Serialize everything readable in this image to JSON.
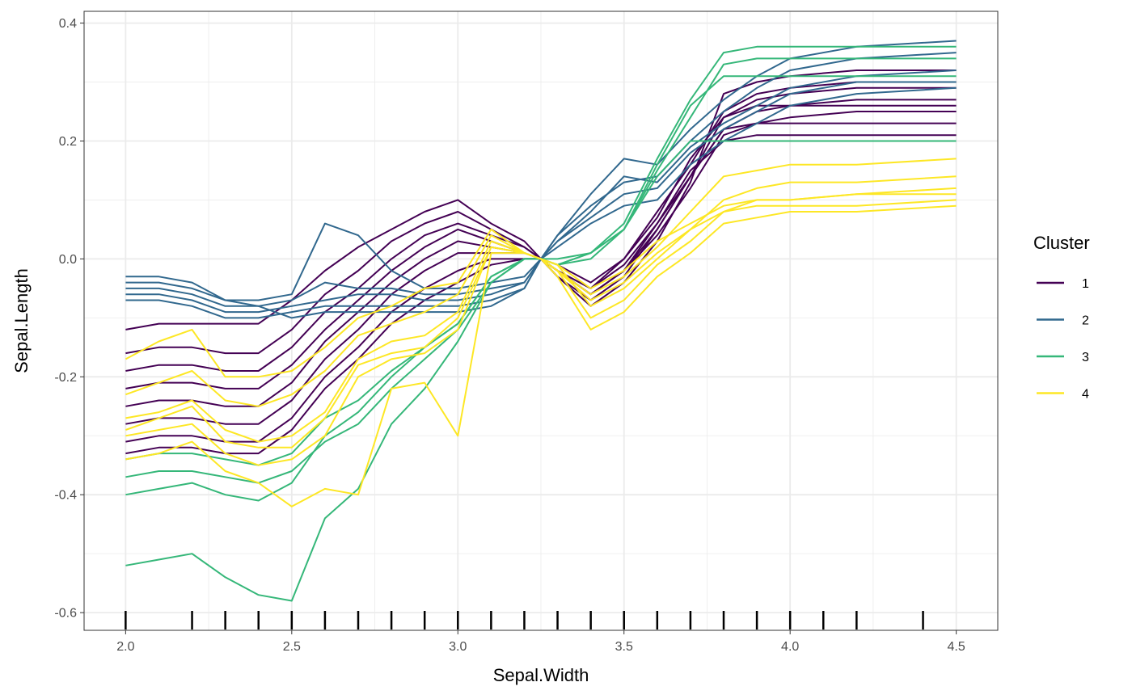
{
  "chart_data": {
    "type": "line",
    "title": "",
    "xlabel": "Sepal.Width",
    "ylabel": "Sepal.Length",
    "xlim": [
      1.875,
      4.625
    ],
    "ylim": [
      -0.63,
      0.42
    ],
    "x_ticks": [
      2.0,
      2.5,
      3.0,
      3.5,
      4.0,
      4.5
    ],
    "x_tick_labels": [
      "2.0",
      "2.5",
      "3.0",
      "3.5",
      "4.0",
      "4.5"
    ],
    "y_ticks": [
      0.4,
      0.2,
      0.0,
      -0.2,
      -0.4,
      -0.6
    ],
    "y_tick_labels": [
      "0.4",
      "0.2",
      "0.0",
      "-0.2",
      "-0.4",
      "-0.6"
    ],
    "grid": true,
    "rug_x": [
      2.0,
      2.2,
      2.3,
      2.4,
      2.5,
      2.6,
      2.7,
      2.8,
      2.9,
      3.0,
      3.1,
      3.2,
      3.3,
      3.4,
      3.5,
      3.6,
      3.7,
      3.8,
      3.9,
      4.0,
      4.1,
      4.2,
      4.4
    ],
    "legend": {
      "title": "Cluster",
      "position": "right",
      "items": [
        {
          "label": "1",
          "color": "#440154"
        },
        {
          "label": "2",
          "color": "#31688E"
        },
        {
          "label": "3",
          "color": "#35B779"
        },
        {
          "label": "4",
          "color": "#FDE725"
        }
      ]
    },
    "x": [
      2.0,
      2.1,
      2.2,
      2.3,
      2.4,
      2.5,
      2.6,
      2.7,
      2.8,
      2.9,
      3.0,
      3.1,
      3.2,
      3.25,
      3.3,
      3.4,
      3.5,
      3.6,
      3.7,
      3.8,
      3.9,
      4.0,
      4.2,
      4.5
    ],
    "series": [
      {
        "cluster": "1",
        "values": [
          -0.12,
          -0.11,
          -0.11,
          -0.11,
          -0.11,
          -0.07,
          -0.02,
          0.02,
          0.05,
          0.08,
          0.1,
          0.06,
          0.03,
          0.0,
          -0.02,
          -0.06,
          -0.02,
          0.06,
          0.14,
          0.22,
          0.25,
          0.26,
          0.27,
          0.27
        ]
      },
      {
        "cluster": "1",
        "values": [
          -0.16,
          -0.15,
          -0.15,
          -0.16,
          -0.16,
          -0.12,
          -0.06,
          -0.02,
          0.03,
          0.06,
          0.08,
          0.05,
          0.02,
          0.0,
          -0.02,
          -0.05,
          0.0,
          0.08,
          0.16,
          0.25,
          0.28,
          0.29,
          0.3,
          0.3
        ]
      },
      {
        "cluster": "1",
        "values": [
          -0.19,
          -0.18,
          -0.18,
          -0.19,
          -0.19,
          -0.15,
          -0.09,
          -0.05,
          0.0,
          0.04,
          0.06,
          0.04,
          0.02,
          0.0,
          -0.03,
          -0.07,
          -0.03,
          0.05,
          0.14,
          0.24,
          0.27,
          0.28,
          0.29,
          0.29
        ]
      },
      {
        "cluster": "1",
        "values": [
          -0.22,
          -0.21,
          -0.21,
          -0.22,
          -0.22,
          -0.18,
          -0.12,
          -0.07,
          -0.02,
          0.02,
          0.05,
          0.03,
          0.01,
          0.0,
          -0.02,
          -0.06,
          -0.02,
          0.04,
          0.12,
          0.21,
          0.23,
          0.24,
          0.25,
          0.25
        ]
      },
      {
        "cluster": "1",
        "values": [
          -0.25,
          -0.24,
          -0.24,
          -0.25,
          -0.25,
          -0.21,
          -0.14,
          -0.09,
          -0.04,
          0.0,
          0.03,
          0.02,
          0.01,
          0.0,
          -0.03,
          -0.08,
          -0.04,
          0.03,
          0.13,
          0.28,
          0.3,
          0.31,
          0.32,
          0.32
        ]
      },
      {
        "cluster": "1",
        "values": [
          -0.28,
          -0.27,
          -0.27,
          -0.28,
          -0.28,
          -0.24,
          -0.17,
          -0.12,
          -0.06,
          -0.02,
          0.01,
          0.01,
          0.01,
          0.0,
          -0.02,
          -0.05,
          -0.01,
          0.06,
          0.15,
          0.2,
          0.21,
          0.21,
          0.21,
          0.21
        ]
      },
      {
        "cluster": "1",
        "values": [
          -0.31,
          -0.3,
          -0.3,
          -0.31,
          -0.31,
          -0.27,
          -0.2,
          -0.15,
          -0.09,
          -0.05,
          -0.02,
          0.0,
          0.0,
          0.0,
          -0.01,
          -0.04,
          0.0,
          0.07,
          0.17,
          0.24,
          0.26,
          0.26,
          0.26,
          0.26
        ]
      },
      {
        "cluster": "1",
        "values": [
          -0.33,
          -0.32,
          -0.32,
          -0.33,
          -0.33,
          -0.29,
          -0.22,
          -0.17,
          -0.11,
          -0.07,
          -0.04,
          -0.01,
          0.0,
          0.0,
          -0.02,
          -0.06,
          -0.02,
          0.05,
          0.14,
          0.22,
          0.23,
          0.23,
          0.23,
          0.23
        ]
      },
      {
        "cluster": "2",
        "values": [
          -0.03,
          -0.03,
          -0.04,
          -0.07,
          -0.07,
          -0.06,
          0.06,
          0.04,
          -0.02,
          -0.05,
          -0.05,
          -0.04,
          -0.03,
          0.0,
          0.04,
          0.11,
          0.17,
          0.16,
          0.22,
          0.27,
          0.31,
          0.34,
          0.36,
          0.37
        ]
      },
      {
        "cluster": "2",
        "values": [
          -0.05,
          -0.05,
          -0.06,
          -0.08,
          -0.08,
          -0.07,
          -0.04,
          -0.05,
          -0.05,
          -0.06,
          -0.06,
          -0.05,
          -0.04,
          0.0,
          0.03,
          0.08,
          0.14,
          0.13,
          0.19,
          0.23,
          0.26,
          0.29,
          0.31,
          0.32
        ]
      },
      {
        "cluster": "2",
        "values": [
          -0.06,
          -0.06,
          -0.07,
          -0.09,
          -0.09,
          -0.08,
          -0.07,
          -0.06,
          -0.06,
          -0.07,
          -0.07,
          -0.06,
          -0.04,
          0.0,
          0.03,
          0.07,
          0.11,
          0.12,
          0.18,
          0.22,
          0.25,
          0.28,
          0.3,
          0.3
        ]
      },
      {
        "cluster": "2",
        "values": [
          -0.07,
          -0.07,
          -0.08,
          -0.1,
          -0.1,
          -0.09,
          -0.08,
          -0.08,
          -0.08,
          -0.08,
          -0.08,
          -0.07,
          -0.05,
          0.0,
          0.02,
          0.06,
          0.09,
          0.1,
          0.16,
          0.2,
          0.23,
          0.26,
          0.28,
          0.29
        ]
      },
      {
        "cluster": "2",
        "values": [
          -0.04,
          -0.04,
          -0.05,
          -0.07,
          -0.08,
          -0.1,
          -0.09,
          -0.09,
          -0.09,
          -0.09,
          -0.09,
          -0.08,
          -0.05,
          0.0,
          0.04,
          0.09,
          0.13,
          0.14,
          0.2,
          0.25,
          0.29,
          0.32,
          0.34,
          0.35
        ]
      },
      {
        "cluster": "3",
        "values": [
          -0.37,
          -0.36,
          -0.36,
          -0.37,
          -0.38,
          -0.36,
          -0.31,
          -0.28,
          -0.22,
          -0.17,
          -0.12,
          -0.04,
          0.0,
          0.0,
          -0.01,
          0.01,
          0.06,
          0.17,
          0.27,
          0.35,
          0.36,
          0.36,
          0.36,
          0.36
        ]
      },
      {
        "cluster": "3",
        "values": [
          -0.4,
          -0.39,
          -0.38,
          -0.4,
          -0.41,
          -0.38,
          -0.3,
          -0.26,
          -0.2,
          -0.15,
          -0.11,
          -0.03,
          0.0,
          0.0,
          -0.01,
          0.0,
          0.05,
          0.15,
          0.24,
          0.33,
          0.34,
          0.34,
          0.34,
          0.34
        ]
      },
      {
        "cluster": "3",
        "values": [
          -0.52,
          -0.51,
          -0.5,
          -0.54,
          -0.57,
          -0.58,
          -0.44,
          -0.39,
          -0.28,
          -0.22,
          -0.14,
          -0.04,
          0.0,
          0.0,
          0.0,
          0.01,
          0.05,
          0.14,
          0.2,
          0.2,
          0.2,
          0.2,
          0.2,
          0.2
        ]
      },
      {
        "cluster": "3",
        "values": [
          -0.34,
          -0.33,
          -0.33,
          -0.34,
          -0.35,
          -0.33,
          -0.27,
          -0.24,
          -0.19,
          -0.15,
          -0.11,
          -0.03,
          0.0,
          0.0,
          -0.01,
          0.01,
          0.05,
          0.16,
          0.26,
          0.31,
          0.31,
          0.31,
          0.31,
          0.31
        ]
      },
      {
        "cluster": "4",
        "values": [
          -0.17,
          -0.14,
          -0.12,
          -0.2,
          -0.2,
          -0.19,
          -0.15,
          -0.1,
          -0.08,
          -0.05,
          -0.04,
          0.05,
          0.01,
          0.0,
          -0.02,
          -0.1,
          -0.07,
          -0.01,
          0.03,
          0.08,
          0.1,
          0.1,
          0.11,
          0.12
        ]
      },
      {
        "cluster": "4",
        "values": [
          -0.23,
          -0.21,
          -0.19,
          -0.24,
          -0.25,
          -0.23,
          -0.19,
          -0.13,
          -0.11,
          -0.09,
          -0.06,
          0.04,
          0.01,
          0.0,
          -0.03,
          -0.12,
          -0.09,
          -0.03,
          0.01,
          0.06,
          0.07,
          0.08,
          0.08,
          0.09
        ]
      },
      {
        "cluster": "4",
        "values": [
          -0.27,
          -0.26,
          -0.24,
          -0.29,
          -0.31,
          -0.3,
          -0.26,
          -0.17,
          -0.14,
          -0.13,
          -0.09,
          0.03,
          0.01,
          0.0,
          -0.01,
          -0.08,
          -0.05,
          0.0,
          0.05,
          0.1,
          0.12,
          0.13,
          0.13,
          0.14
        ]
      },
      {
        "cluster": "4",
        "values": [
          -0.3,
          -0.29,
          -0.28,
          -0.33,
          -0.35,
          -0.34,
          -0.3,
          -0.2,
          -0.17,
          -0.16,
          -0.12,
          0.02,
          0.01,
          0.0,
          -0.02,
          -0.06,
          -0.03,
          0.02,
          0.08,
          0.14,
          0.15,
          0.16,
          0.16,
          0.17
        ]
      },
      {
        "cluster": "4",
        "values": [
          -0.34,
          -0.33,
          -0.31,
          -0.36,
          -0.38,
          -0.42,
          -0.39,
          -0.4,
          -0.22,
          -0.21,
          -0.3,
          0.01,
          0.01,
          0.0,
          -0.01,
          -0.05,
          -0.02,
          0.03,
          0.06,
          0.09,
          0.1,
          0.1,
          0.11,
          0.11
        ]
      },
      {
        "cluster": "4",
        "values": [
          -0.29,
          -0.27,
          -0.25,
          -0.31,
          -0.32,
          -0.32,
          -0.27,
          -0.18,
          -0.16,
          -0.15,
          -0.1,
          0.02,
          0.01,
          0.0,
          -0.02,
          -0.07,
          -0.04,
          0.01,
          0.05,
          0.08,
          0.09,
          0.09,
          0.09,
          0.1
        ]
      }
    ]
  }
}
